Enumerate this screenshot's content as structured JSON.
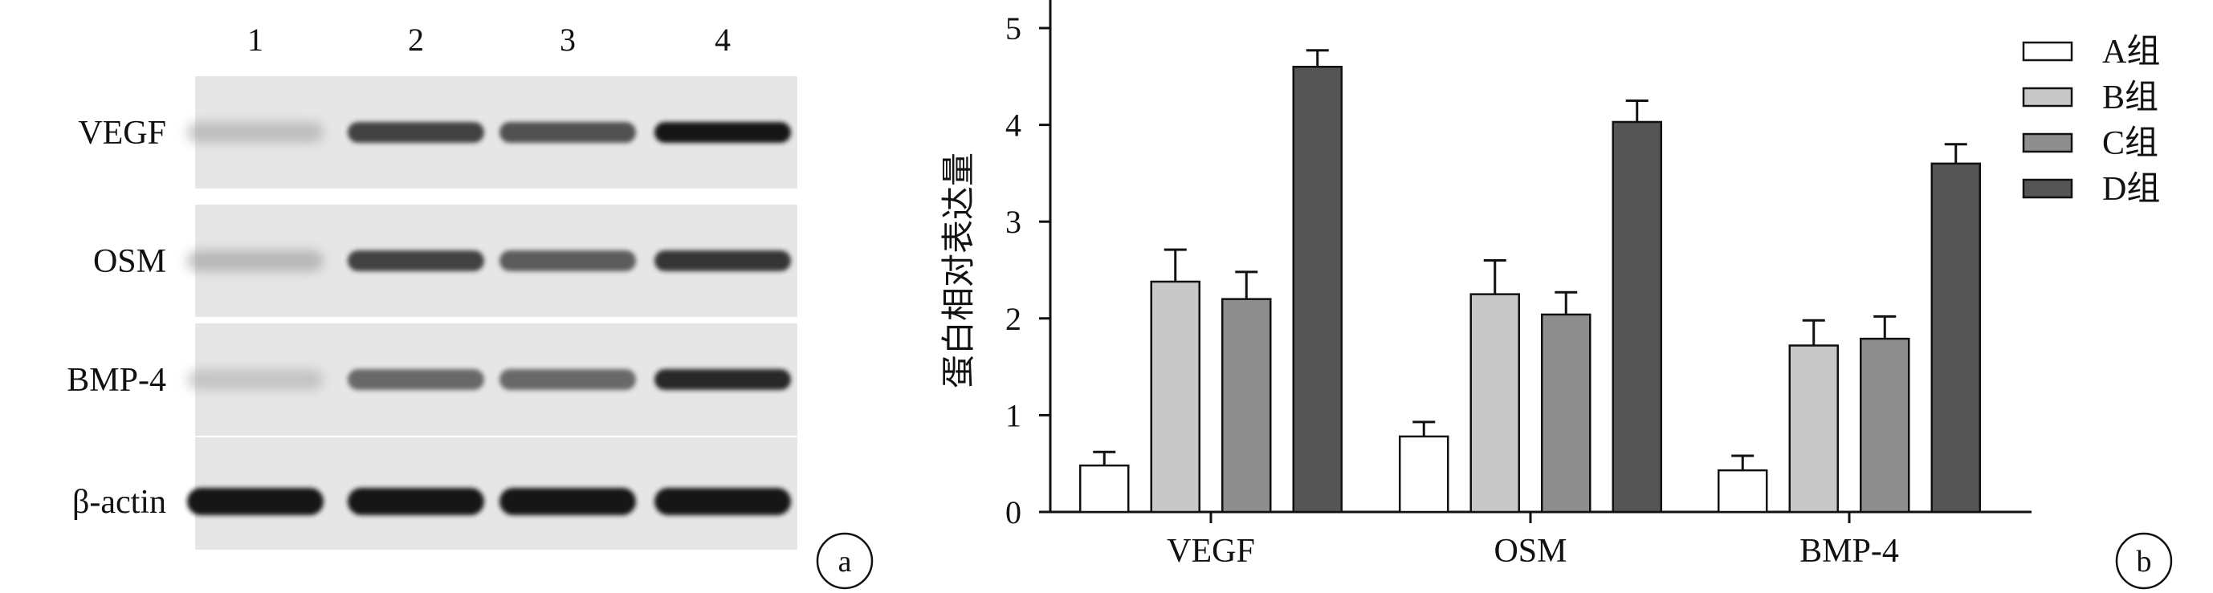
{
  "blot": {
    "lanes": [
      "1",
      "2",
      "3",
      "4"
    ],
    "rows": [
      {
        "label": "VEGF",
        "intensity": [
          0.25,
          0.85,
          0.8,
          1.0
        ]
      },
      {
        "label": "OSM",
        "intensity": [
          0.3,
          0.85,
          0.75,
          0.9
        ]
      },
      {
        "label": "BMP-4",
        "intensity": [
          0.2,
          0.7,
          0.7,
          0.95
        ]
      },
      {
        "label": "β-actin",
        "intensity": [
          1.0,
          1.0,
          1.0,
          1.0
        ]
      }
    ],
    "panel_label": "a"
  },
  "chart_panel_label": "b",
  "chart_data": {
    "type": "bar",
    "title": "",
    "xlabel": "",
    "ylabel": "蛋白相对表达量",
    "ylim": [
      0,
      5
    ],
    "yticks": [
      0,
      1,
      2,
      3,
      4,
      5
    ],
    "categories": [
      "VEGF",
      "OSM",
      "BMP-4"
    ],
    "series": [
      {
        "name": "A组",
        "color": "#ffffff",
        "values": [
          0.48,
          0.78,
          0.43
        ],
        "errors": [
          0.14,
          0.15,
          0.15
        ]
      },
      {
        "name": "B组",
        "color": "#c8c8c8",
        "values": [
          2.38,
          2.25,
          1.72
        ],
        "errors": [
          0.33,
          0.35,
          0.26
        ]
      },
      {
        "name": "C组",
        "color": "#8e8e8e",
        "values": [
          2.2,
          2.04,
          1.79
        ],
        "errors": [
          0.28,
          0.23,
          0.23
        ]
      },
      {
        "name": "D组",
        "color": "#555555",
        "values": [
          4.6,
          4.03,
          3.6
        ],
        "errors": [
          0.17,
          0.22,
          0.2
        ]
      }
    ],
    "legend_position": "top-right",
    "grid": false
  }
}
